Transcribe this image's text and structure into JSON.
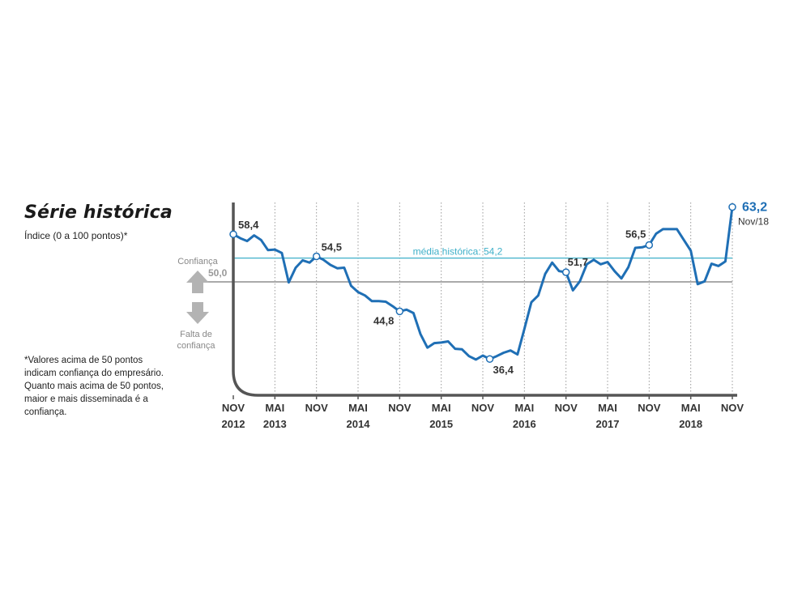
{
  "header": {
    "title": "Série histórica",
    "subtitle": "Índice (0 a 100 pontos)*"
  },
  "footnote": "*Valores acima de 50 pontos indicam confiança do empresário. Quanto mais acima de 50 pontos, maior e mais disseminada é a confiança.",
  "indicator": {
    "up_label": "Confiança",
    "down_label_1": "Falta de",
    "down_label_2": "confiança",
    "threshold_label": "50,0"
  },
  "colors": {
    "series": "#1f6fb5",
    "average": "#3fb0c9",
    "threshold": "#aaaaaa",
    "axis": "#555555",
    "arrow": "#b3b3b3"
  },
  "chart_data": {
    "type": "line",
    "x_ticks": [
      {
        "month": "NOV",
        "year": "2012"
      },
      {
        "month": "MAI",
        "year": "2013"
      },
      {
        "month": "NOV",
        "year": ""
      },
      {
        "month": "MAI",
        "year": "2014"
      },
      {
        "month": "NOV",
        "year": ""
      },
      {
        "month": "MAI",
        "year": "2015"
      },
      {
        "month": "NOV",
        "year": ""
      },
      {
        "month": "MAI",
        "year": "2016"
      },
      {
        "month": "NOV",
        "year": ""
      },
      {
        "month": "MAI",
        "year": "2017"
      },
      {
        "month": "NOV",
        "year": ""
      },
      {
        "month": "MAI",
        "year": "2018"
      },
      {
        "month": "NOV",
        "year": ""
      }
    ],
    "ylim": [
      30,
      64
    ],
    "threshold": 50.0,
    "average": {
      "value": 54.2,
      "label": "média histórica: 54,2"
    },
    "grid_vertical": true,
    "series": [
      {
        "values": [
          58.4,
          57.7,
          57.2,
          58.2,
          57.4,
          55.6,
          55.7,
          55.1,
          49.9,
          52.5,
          53.8,
          53.4,
          54.5,
          53.9,
          53.0,
          52.4,
          52.5,
          49.3,
          48.2,
          47.6,
          46.6,
          46.6,
          46.5,
          45.7,
          44.8,
          45.1,
          44.5,
          40.8,
          38.4,
          39.2,
          39.3,
          39.5,
          38.2,
          38.1,
          36.9,
          36.3,
          37.0,
          36.4,
          36.9,
          37.5,
          37.9,
          37.2,
          41.7,
          46.4,
          47.6,
          51.4,
          53.4,
          51.9,
          51.7,
          48.5,
          50.1,
          53.1,
          53.9,
          53.1,
          53.5,
          51.9,
          50.6,
          52.6,
          56.0,
          56.1,
          56.5,
          58.5,
          59.3,
          59.3,
          59.3,
          57.4,
          55.5,
          49.6,
          50.1,
          53.2,
          52.8,
          53.6,
          63.2
        ]
      }
    ],
    "annotations": [
      {
        "index": 0,
        "label": "58,4"
      },
      {
        "index": 12,
        "label": "54,5"
      },
      {
        "index": 24,
        "label": "44,8"
      },
      {
        "index": 37,
        "label": "36,4"
      },
      {
        "index": 48,
        "label": "51,7"
      },
      {
        "index": 60,
        "label": "56,5"
      },
      {
        "index": 72,
        "label": "63,2",
        "sublabel": "Nov/18"
      }
    ]
  }
}
